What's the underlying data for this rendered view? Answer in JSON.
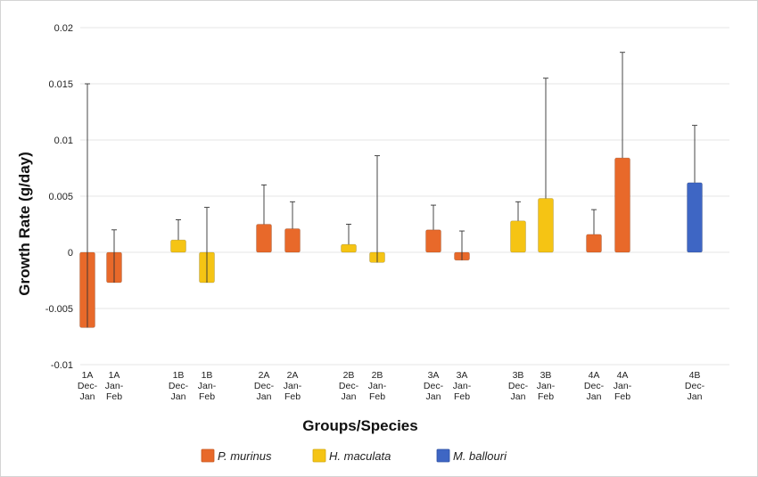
{
  "chart_data": {
    "type": "bar",
    "xlabel": "Groups/Species",
    "ylabel": "Growth Rate (g/day)",
    "ylim": [
      -0.01,
      0.02
    ],
    "yticks": [
      "0.02",
      "0.015",
      "0.01",
      "0.005",
      "0",
      "-0.005",
      "-0.01"
    ],
    "ytick_values": [
      0.02,
      0.015,
      0.01,
      0.005,
      0,
      -0.005,
      -0.01
    ],
    "grid": true,
    "legend_position": "bottom",
    "legend": [
      {
        "name": "P. murinus",
        "color": "#e8692a"
      },
      {
        "name": "H. maculata",
        "color": "#f5c414"
      },
      {
        "name": "M. ballouri",
        "color": "#3e66c4"
      }
    ],
    "bars": [
      {
        "group": "1A",
        "period1": "Dec-",
        "period2": "Jan",
        "species": "P. murinus",
        "value": -0.0067,
        "error_end": 0.015
      },
      {
        "group": "1A",
        "period1": "Jan-",
        "period2": "Feb",
        "species": "P. murinus",
        "value": -0.0027,
        "error_end": 0.002
      },
      {
        "group": "1B",
        "period1": "Dec-",
        "period2": "Jan",
        "species": "H. maculata",
        "value": 0.0011,
        "error_end": 0.0029
      },
      {
        "group": "1B",
        "period1": "Jan-",
        "period2": "Feb",
        "species": "H. maculata",
        "value": -0.0027,
        "error_end": 0.004
      },
      {
        "group": "2A",
        "period1": "Dec-",
        "period2": "Jan",
        "species": "P. murinus",
        "value": 0.0025,
        "error_end": 0.006
      },
      {
        "group": "2A",
        "period1": "Jan-",
        "period2": "Feb",
        "species": "P. murinus",
        "value": 0.0021,
        "error_end": 0.0045
      },
      {
        "group": "2B",
        "period1": "Dec-",
        "period2": "Jan",
        "species": "H. maculata",
        "value": 0.0007,
        "error_end": 0.0025
      },
      {
        "group": "2B",
        "period1": "Jan-",
        "period2": "Feb",
        "species": "H. maculata",
        "value": -0.0009,
        "error_end": 0.0086
      },
      {
        "group": "3A",
        "period1": "Dec-",
        "period2": "Jan",
        "species": "P. murinus",
        "value": 0.002,
        "error_end": 0.0042
      },
      {
        "group": "3A",
        "period1": "Jan-",
        "period2": "Feb",
        "species": "P. murinus",
        "value": -0.0007,
        "error_end": 0.0019
      },
      {
        "group": "3B",
        "period1": "Dec-",
        "period2": "Jan",
        "species": "H. maculata",
        "value": 0.0028,
        "error_end": 0.0045
      },
      {
        "group": "3B",
        "period1": "Jan-",
        "period2": "Feb",
        "species": "H. maculata",
        "value": 0.0048,
        "error_end": 0.0155
      },
      {
        "group": "4A",
        "period1": "Dec-",
        "period2": "Jan",
        "species": "P. murinus",
        "value": 0.0016,
        "error_end": 0.0038
      },
      {
        "group": "4A",
        "period1": "Jan-",
        "period2": "Feb",
        "species": "P. murinus",
        "value": 0.0084,
        "error_end": 0.0178
      },
      {
        "group": "4B",
        "period1": "Dec-",
        "period2": "Jan",
        "species": "M. ballouri",
        "value": 0.0062,
        "error_end": 0.0113
      }
    ]
  }
}
